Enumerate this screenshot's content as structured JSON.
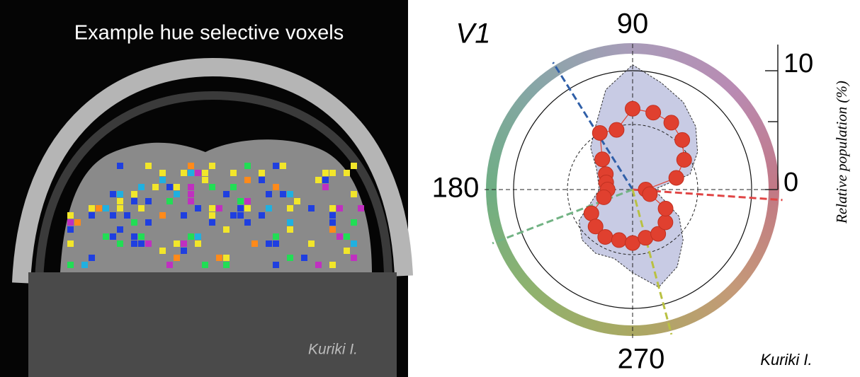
{
  "left_panel": {
    "title": "Example hue selective voxels",
    "credit": "Kuriki I."
  },
  "chart_data": {
    "type": "polar",
    "title": "V1",
    "x": [
      0,
      15,
      30,
      45,
      60,
      75,
      90,
      105,
      120,
      135,
      150,
      165,
      180,
      195,
      210,
      225,
      240,
      255,
      270,
      285,
      300,
      315,
      330,
      345
    ],
    "values": [
      1.1,
      3.8,
      5.0,
      5.9,
      6.5,
      6.7,
      6.8,
      5.2,
      5.5,
      3.6,
      2.6,
      2.3,
      2.1,
      2.5,
      4.0,
      4.4,
      4.6,
      4.4,
      4.5,
      4.2,
      4.3,
      3.9,
      3.2,
      1.5
    ],
    "envelope": [
      1.8,
      5.0,
      6.3,
      7.5,
      8.5,
      9.3,
      10.5,
      8.7,
      6.2,
      5.0,
      3.5,
      3.0,
      2.8,
      3.5,
      5.2,
      6.0,
      6.2,
      6.0,
      7.0,
      8.5,
      7.5,
      6.0,
      4.5,
      2.5
    ],
    "color": "#e0402f",
    "envelope_color": "#c8cbe4",
    "theta_ticks": [
      90,
      180,
      270
    ],
    "rlim": [
      0,
      12.2
    ],
    "rticks": [
      0,
      10
    ],
    "r_axis_label": "Relative population (%)",
    "direction_lines": [
      {
        "angle": 122,
        "color": "#2f5fa8"
      },
      {
        "angle": 356,
        "color": "#e04545"
      },
      {
        "angle": 201,
        "color": "#72b384"
      },
      {
        "angle": 285,
        "color": "#b9c142"
      }
    ],
    "credit": "Kuriki I."
  }
}
